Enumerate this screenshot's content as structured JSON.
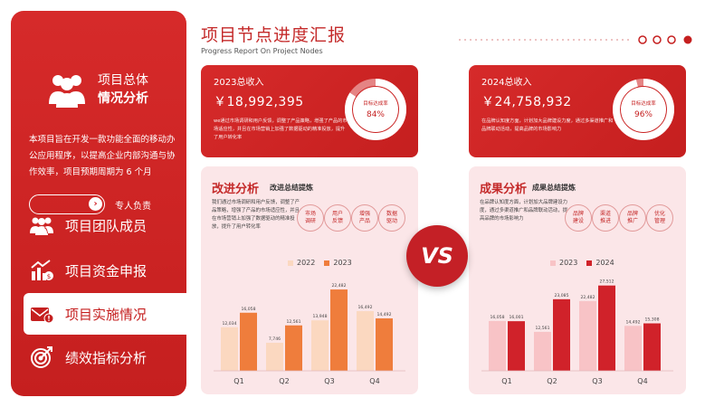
{
  "sidebar": {
    "title_line1": "项目总体",
    "title_line2": "情况分析",
    "desc": "本项目旨在开发一款功能全面的移动办公应用程序，以提高企业内部沟通与协作效率，项目预期周期为 6 个月",
    "owner_label": "专人负责",
    "toggle_icon": "chevron-right-icon",
    "nav": [
      {
        "label": "项目团队成员",
        "icon": "team-icon",
        "active": false
      },
      {
        "label": "项目资金申报",
        "icon": "chart-money-icon",
        "active": false
      },
      {
        "label": "项目实施情况",
        "icon": "mail-alert-icon",
        "active": true
      },
      {
        "label": "绩效指标分析",
        "icon": "target-icon",
        "active": false
      }
    ]
  },
  "header": {
    "title": "项目节点进度汇报",
    "subtitle": "Progress Report On Project Nodes"
  },
  "cards": [
    {
      "label": "2023总收入",
      "amount": "￥18,992,395",
      "desc": "we通过市场调研和用户反馈，调整了产品策略，增强了产品的市场适应性，并且在市场营销上加强了数据驱动的精准投放，提升了用户转化率",
      "donut_label": "目标达成率",
      "donut_value": "84%",
      "progress": 0.84
    },
    {
      "label": "2024总收入",
      "amount": "￥24,758,932",
      "desc": "在品牌认知度方面，计划加大品牌建设力度，通过多渠道推广和品牌联动活动，提高品牌的市场影响力",
      "donut_label": "目标达成率",
      "donut_value": "96%",
      "progress": 0.96
    }
  ],
  "panels": [
    {
      "title": "改进分析",
      "subtitle": "改进总结提炼",
      "desc": "我们通过市场调研和用户反馈，调整了产品策略，增强了产品的市场适应性，并且在市场营销上加强了数据驱动的精准投放，提升了用户转化率",
      "tags": [
        "市场\n调研",
        "用户\n反馈",
        "增强\n产品",
        "数据\n驱动"
      ]
    },
    {
      "title": "成果分析",
      "subtitle": "成果总结提炼",
      "desc": "在品牌认知度方面，计划加大品牌建设力度，通过多渠道推广和品牌联动活动，提高品牌的市场影响力",
      "tags": [
        "品牌\n建设",
        "渠道\n推进",
        "品牌\n推广",
        "优化\n管理"
      ]
    }
  ],
  "vs_label": "VS",
  "colors": {
    "brand_red": "#c51f1f",
    "panel_bg": "#fbe6e8",
    "s2022": "#fbd8c0",
    "s2023": "#ef7d3c",
    "s2023b": "#f8c3c6",
    "s2024": "#d0222a"
  },
  "chart_data": [
    {
      "type": "bar",
      "categories": [
        "Q1",
        "Q2",
        "Q3",
        "Q4"
      ],
      "series": [
        {
          "name": "2022",
          "values": [
            12034,
            7746,
            13948,
            16492
          ],
          "labels": [
            "12,034",
            "7,746",
            "13,948",
            "16,492"
          ]
        },
        {
          "name": "2023",
          "values": [
            16058,
            12561,
            22482,
            14492
          ],
          "labels": [
            "16,058",
            "12,561",
            "22,482",
            "14,492"
          ]
        }
      ],
      "ylim": [
        0,
        24000
      ]
    },
    {
      "type": "bar",
      "categories": [
        "Q1",
        "Q2",
        "Q3",
        "Q4"
      ],
      "series": [
        {
          "name": "2023",
          "values": [
            16058,
            12561,
            22482,
            14492
          ],
          "labels": [
            "16,058",
            "12,561",
            "22,482",
            "14,492"
          ]
        },
        {
          "name": "2024",
          "values": [
            16001,
            23085,
            27512,
            15308
          ],
          "labels": [
            "16,001",
            "23,085",
            "27,512",
            "15,308"
          ]
        }
      ],
      "ylim": [
        0,
        28000
      ]
    }
  ]
}
